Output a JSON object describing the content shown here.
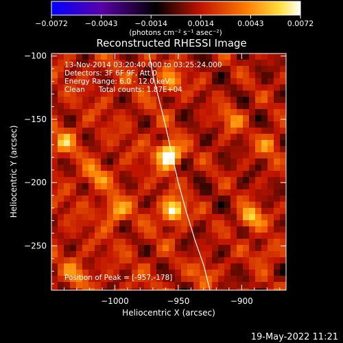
{
  "chart_data": {
    "type": "heatmap",
    "title": "Reconstructed RHESSI Image",
    "xlabel": "Heliocentric X (arcsec)",
    "ylabel": "Heliocentric Y (arcsec)",
    "xlim": [
      -1050,
      -865
    ],
    "ylim": [
      -285,
      -98
    ],
    "x_ticks": [
      -1000,
      -950,
      -900
    ],
    "y_ticks": [
      -100,
      -150,
      -200,
      -250
    ],
    "x_tick_labels": [
      "−1000",
      "−950",
      "−900"
    ],
    "y_tick_labels": [
      "−100",
      "−150",
      "−200",
      "−250"
    ],
    "colorbar": {
      "range": [
        -0.0072,
        0.0072
      ],
      "tick_labels": [
        "−0.0072",
        "−0.0043",
        "−0.0014",
        "0.0014",
        "0.0043",
        "0.0072"
      ],
      "unit": "(photons cm⁻² s⁻¹ asec⁻²)",
      "colors": [
        "#0000ff",
        "#7a0090",
        "#000000",
        "#c01400",
        "#ff7a00",
        "#ffe040",
        "#ffffff"
      ]
    },
    "annotations": [
      "13-Nov-2014 03:20:40.000 to 03:25:24.000",
      "Detectors: 3F 6F 9F, Att 0",
      "Energy Range: 6.0 - 12.0 keV",
      "Clean      Total counts: 1.87E+04"
    ],
    "peak_label": "Position of Peak = [-957,-178]",
    "peak": {
      "x": -957,
      "y": -178,
      "value": 0.0072
    },
    "sources": [
      {
        "x": -957,
        "y": -178,
        "value": 0.0072
      },
      {
        "x": -953,
        "y": -222,
        "value": 0.0058
      },
      {
        "x": -1000,
        "y": -222,
        "value": 0.0036
      },
      {
        "x": -893,
        "y": -228,
        "value": 0.0045
      },
      {
        "x": -955,
        "y": -120,
        "value": 0.0032
      },
      {
        "x": -1040,
        "y": -168,
        "value": 0.0028
      },
      {
        "x": -908,
        "y": -150,
        "value": 0.0028
      },
      {
        "x": -878,
        "y": -170,
        "value": 0.003
      },
      {
        "x": -1015,
        "y": -195,
        "value": 0.0026
      },
      {
        "x": -880,
        "y": -255,
        "value": 0.0024
      },
      {
        "x": -1030,
        "y": -272,
        "value": 0.0022
      },
      {
        "x": -930,
        "y": -272,
        "value": 0.0024
      }
    ],
    "limb": [
      [
        -973,
        -98
      ],
      [
        -970,
        -115
      ],
      [
        -965,
        -135
      ],
      [
        -960,
        -155
      ],
      [
        -955,
        -178
      ],
      [
        -950,
        -200
      ],
      [
        -944,
        -222
      ],
      [
        -937,
        -245
      ],
      [
        -930,
        -265
      ],
      [
        -925,
        -285
      ]
    ],
    "grid": false
  },
  "footer": {
    "timestamp": "19-May-2022 11:21"
  }
}
